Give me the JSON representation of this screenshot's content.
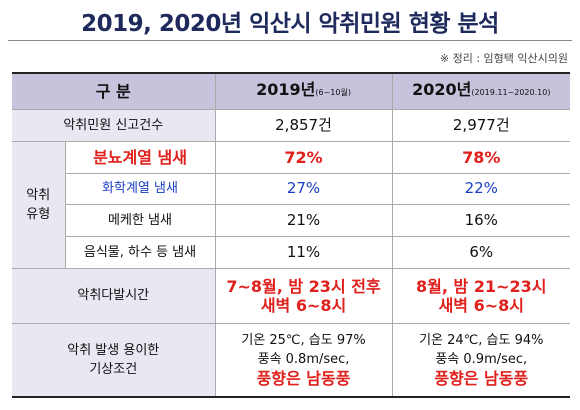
{
  "header": {
    "title": "2019, 2020년 익산시 악취민원 현황 분석",
    "note": "※ 정리 : 임형택 익산시의원"
  },
  "table": {
    "header": [
      "구 분",
      {
        "year": "2019년",
        "period": "(6~10월)"
      },
      {
        "year": "2020년",
        "period": "(2019.11~2020.10)"
      }
    ],
    "complaints": {
      "label": "악취민원 신고건수",
      "values": [
        "2,857건",
        "2,977건"
      ]
    },
    "types": {
      "group": [
        "악취",
        "유형"
      ],
      "rows": [
        {
          "label": "분뇨계열 냄새",
          "values": [
            "72%",
            "78%"
          ]
        },
        {
          "label": "화학계열 냄새",
          "values": [
            "27%",
            "22%"
          ]
        },
        {
          "label": "메케한 냄새",
          "values": [
            "21%",
            "16%"
          ]
        },
        {
          "label": "음식물, 하수 등 냄새",
          "values": [
            "11%",
            "6%"
          ]
        }
      ]
    },
    "peak_time": {
      "label": "악취다발시간",
      "values": [
        [
          "7~8월, 밤 23시 전후",
          "새벽 6~8시"
        ],
        [
          "8월, 밤 21~23시",
          "새벽 6~8시"
        ]
      ]
    },
    "weather": {
      "label": [
        "악취 발생 용이한",
        "기상조건"
      ],
      "values": [
        [
          "기온 25℃, 습도 97%",
          "풍속 0.8m/sec,",
          "풍향은 남동풍"
        ],
        [
          "기온 24℃, 습도 94%",
          "풍속 0.9m/sec,",
          "풍향은 남동풍"
        ]
      ]
    }
  }
}
